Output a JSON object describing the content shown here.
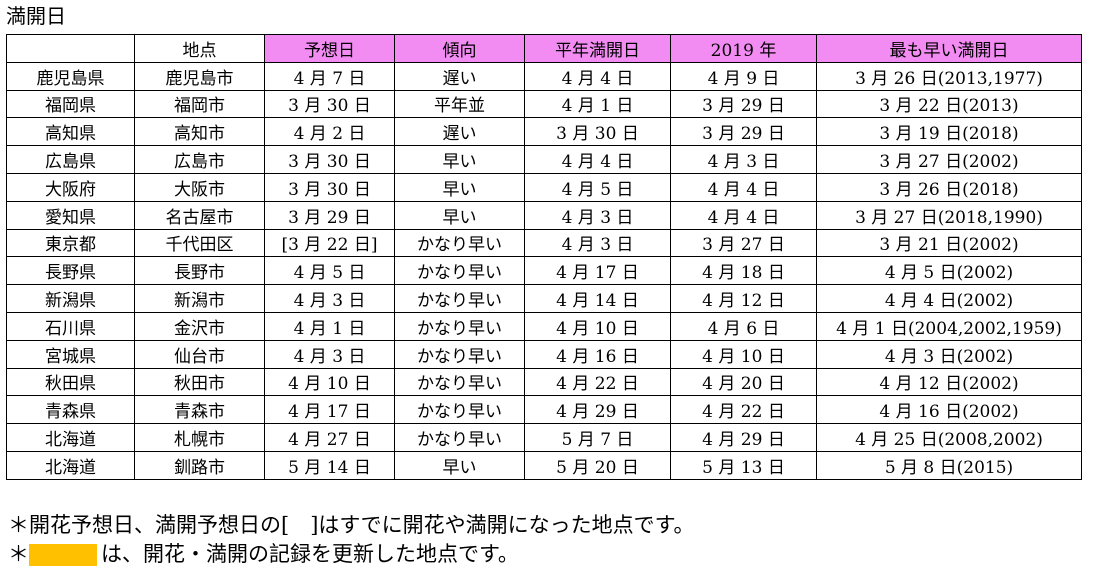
{
  "title": "満開日",
  "columns": [
    "",
    "地点",
    "予想日",
    "傾向",
    "平年満開日",
    "2019 年",
    "最も早い満開日"
  ],
  "highlight_color": "#f28cf2",
  "record_color": "#ffc000",
  "rows": [
    [
      "鹿児島県",
      "鹿児島市",
      "4 月 7 日",
      "遅い",
      "4 月 4 日",
      "4 月 9 日",
      "3 月 26 日(2013,1977)"
    ],
    [
      "福岡県",
      "福岡市",
      "3 月 30 日",
      "平年並",
      "4 月 1 日",
      "3 月 29 日",
      "3 月 22 日(2013)"
    ],
    [
      "高知県",
      "高知市",
      "4 月 2 日",
      "遅い",
      "3 月 30 日",
      "3 月 29 日",
      "3 月 19 日(2018)"
    ],
    [
      "広島県",
      "広島市",
      "3 月 30 日",
      "早い",
      "4 月 4 日",
      "4 月 3 日",
      "3 月 27 日(2002)"
    ],
    [
      "大阪府",
      "大阪市",
      "3 月 30 日",
      "早い",
      "4 月 5 日",
      "4 月 4 日",
      "3 月 26 日(2018)"
    ],
    [
      "愛知県",
      "名古屋市",
      "3 月 29 日",
      "早い",
      "4 月 3 日",
      "4 月 4 日",
      "3 月 27 日(2018,1990)"
    ],
    [
      "東京都",
      "千代田区",
      "[3 月 22 日]",
      "かなり早い",
      "4 月 3 日",
      "3 月 27 日",
      "3 月 21 日(2002)"
    ],
    [
      "長野県",
      "長野市",
      "4 月 5 日",
      "かなり早い",
      "4 月 17 日",
      "4 月 18 日",
      "4 月 5 日(2002)"
    ],
    [
      "新潟県",
      "新潟市",
      "4 月 3 日",
      "かなり早い",
      "4 月 14 日",
      "4 月 12 日",
      "4 月 4 日(2002)"
    ],
    [
      "石川県",
      "金沢市",
      "4 月 1 日",
      "かなり早い",
      "4 月 10 日",
      "4 月 6 日",
      "4 月 1 日(2004,2002,1959)"
    ],
    [
      "宮城県",
      "仙台市",
      "4 月 3 日",
      "かなり早い",
      "4 月 16 日",
      "4 月 10 日",
      "4 月 3 日(2002)"
    ],
    [
      "秋田県",
      "秋田市",
      "4 月 10 日",
      "かなり早い",
      "4 月 22 日",
      "4 月 20 日",
      "4 月 12 日(2002)"
    ],
    [
      "青森県",
      "青森市",
      "4 月 17 日",
      "かなり早い",
      "4 月 29 日",
      "4 月 22 日",
      "4 月 16 日(2002)"
    ],
    [
      "北海道",
      "札幌市",
      "4 月 27 日",
      "かなり早い",
      "5 月 7 日",
      "4 月 29 日",
      "4 月 25 日(2008,2002)"
    ],
    [
      "北海道",
      "釧路市",
      "5 月 14 日",
      "早い",
      "5 月 20 日",
      "5 月 13 日",
      "5 月 8 日(2015)"
    ]
  ],
  "notes": {
    "note1": "＊開花予想日、満開予想日の[　]はすでに開花や満開になった地点です。",
    "note2_prefix": "＊",
    "note2_text": "は、開花・満開の記録を更新した地点です。"
  }
}
